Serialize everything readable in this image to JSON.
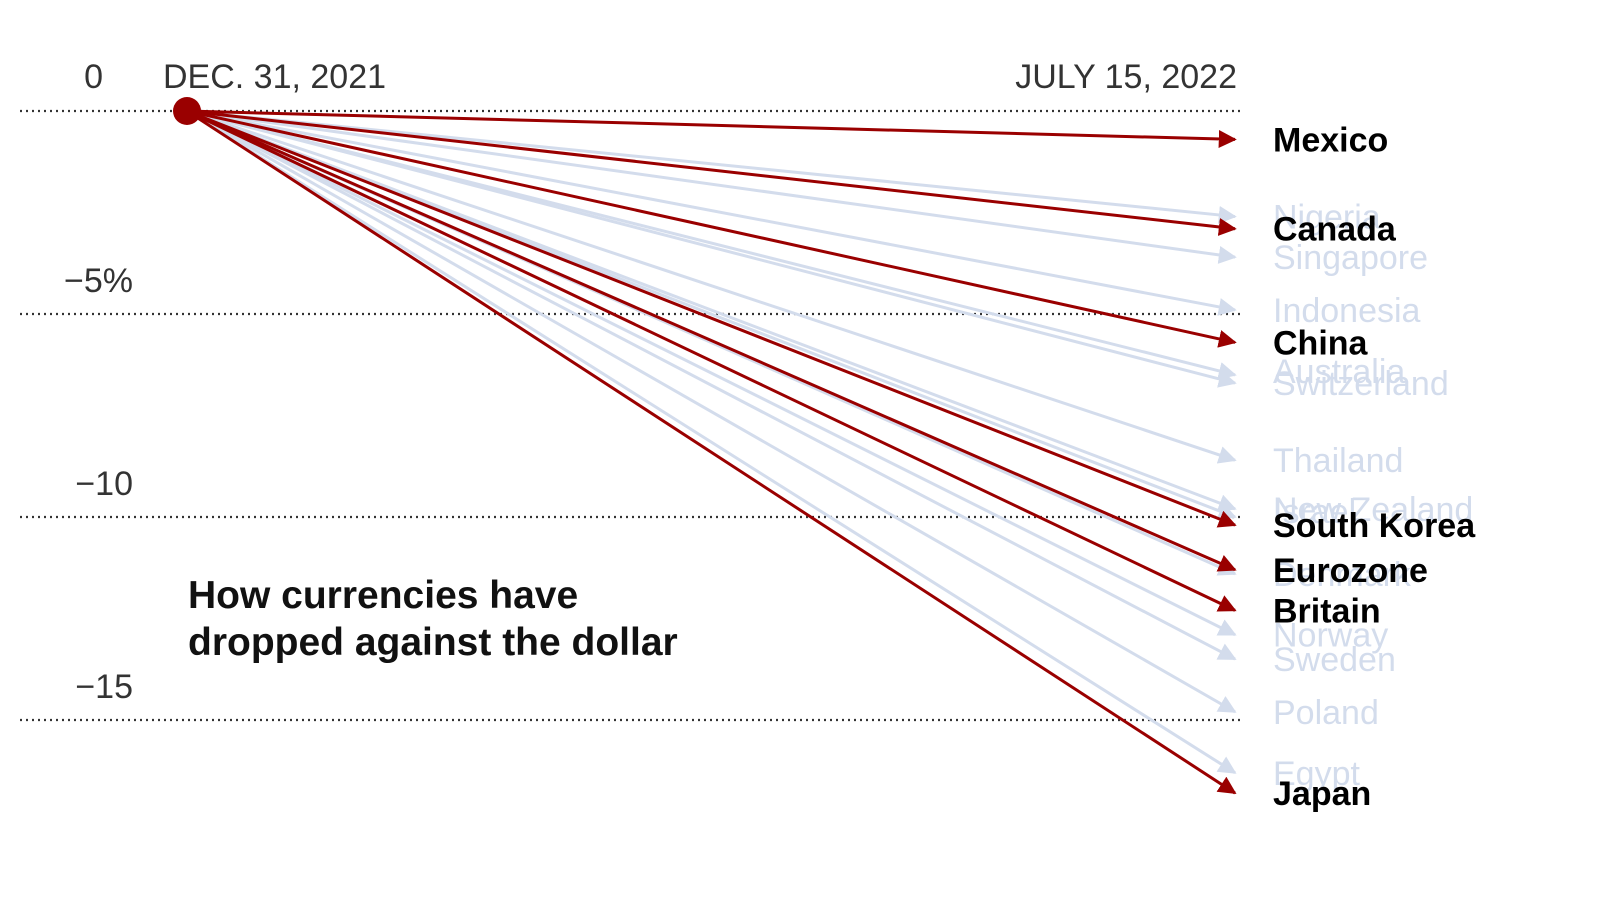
{
  "chart_data": {
    "type": "line",
    "title_lines": [
      "How currencies have",
      "dropped against the dollar"
    ],
    "start_label": "DEC. 31, 2021",
    "end_label": "JULY 15, 2022",
    "y_ticks": [
      {
        "value": 0,
        "label": "0"
      },
      {
        "value": -5,
        "label": "−5%"
      },
      {
        "value": -10,
        "label": "−10"
      },
      {
        "value": -15,
        "label": "−15"
      }
    ],
    "ylim": [
      -17.3,
      0
    ],
    "grid": "dotted horizontal",
    "highlight_color": "#9a0000",
    "muted_color": "#d3dcec",
    "series": [
      {
        "name": "Mexico",
        "value": -0.7,
        "highlight": true
      },
      {
        "name": "Nigeria",
        "value": -2.6,
        "highlight": false
      },
      {
        "name": "Canada",
        "value": -2.9,
        "highlight": true
      },
      {
        "name": "Singapore",
        "value": -3.6,
        "highlight": false
      },
      {
        "name": "Indonesia",
        "value": -4.9,
        "highlight": false
      },
      {
        "name": "China",
        "value": -5.7,
        "highlight": true
      },
      {
        "name": "Australia",
        "value": -6.5,
        "highlight": false
      },
      {
        "name": "Switzerland",
        "value": -6.7,
        "highlight": false
      },
      {
        "name": "Thailand",
        "value": -8.6,
        "highlight": false
      },
      {
        "name": "New Zealand",
        "value": -9.8,
        "highlight": false
      },
      {
        "name": "Israel",
        "value": -10.0,
        "highlight": false
      },
      {
        "name": "South Korea",
        "value": -10.2,
        "highlight": true
      },
      {
        "name": "Eurozone",
        "value": -11.3,
        "highlight": true
      },
      {
        "name": "Denmark",
        "value": -11.4,
        "highlight": false
      },
      {
        "name": "Britain",
        "value": -12.3,
        "highlight": true
      },
      {
        "name": "Norway",
        "value": -12.9,
        "highlight": false
      },
      {
        "name": "Sweden",
        "value": -13.5,
        "highlight": false
      },
      {
        "name": "Poland",
        "value": -14.8,
        "highlight": false
      },
      {
        "name": "Egypt",
        "value": -16.3,
        "highlight": false
      },
      {
        "name": "Japan",
        "value": -16.8,
        "highlight": true
      }
    ]
  }
}
